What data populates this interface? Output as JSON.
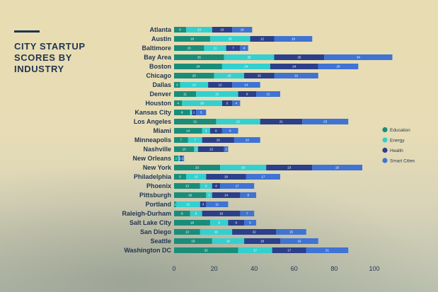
{
  "title": "CITY STARTUP SCORES BY INDUSTRY",
  "colors": {
    "Education": "#1a8d7a",
    "Energy": "#33d0cf",
    "Health": "#2b3f8a",
    "Smart Cities": "#3f73d4"
  },
  "chart_data": {
    "type": "bar",
    "orientation": "horizontal",
    "stacked": true,
    "title": "CITY STARTUP SCORES BY INDUSTRY",
    "xlim": [
      0,
      100
    ],
    "xticks": [
      0,
      20,
      40,
      60,
      80,
      100
    ],
    "legend_position": "right",
    "categories": [
      "Atlanta",
      "Austin",
      "Baltimore",
      "Bay Area",
      "Boston",
      "Chicago",
      "Dallas",
      "Denver",
      "Houston",
      "Kansas City",
      "Los Angeles",
      "Miami",
      "Minneapolis",
      "Nashville",
      "New Orleans",
      "New York",
      "Philadelphia",
      "Phoenix",
      "Pittsburgh",
      "Portland",
      "Raleigh-Durham",
      "Salt Lake City",
      "San Diego",
      "Seattle",
      "Washington DC"
    ],
    "series": [
      {
        "name": "Education",
        "values": [
          6,
          18,
          15,
          25,
          24,
          20,
          3,
          11,
          4,
          8,
          21,
          14,
          7,
          10,
          2,
          23,
          6,
          13,
          16,
          1,
          8,
          18,
          13,
          19,
          32
        ]
      },
      {
        "name": "Energy",
        "values": [
          13,
          20,
          11,
          25,
          24,
          15,
          14,
          21,
          20,
          1,
          22,
          4,
          7,
          2,
          1,
          23,
          10,
          6,
          3,
          12,
          6,
          9,
          16,
          16,
          17
        ]
      },
      {
        "name": "Health",
        "values": [
          10,
          12,
          7,
          25,
          24,
          15,
          12,
          9,
          5,
          2,
          21,
          6,
          16,
          13,
          1,
          23,
          20,
          4,
          14,
          3,
          19,
          8,
          22,
          18,
          17
        ]
      },
      {
        "name": "Smart Cities",
        "values": [
          10,
          19,
          4,
          34,
          20,
          22,
          14,
          12,
          4,
          5,
          23,
          8,
          13,
          2,
          1,
          25,
          17,
          17,
          8,
          11,
          7,
          6,
          15,
          19,
          21
        ]
      }
    ]
  }
}
